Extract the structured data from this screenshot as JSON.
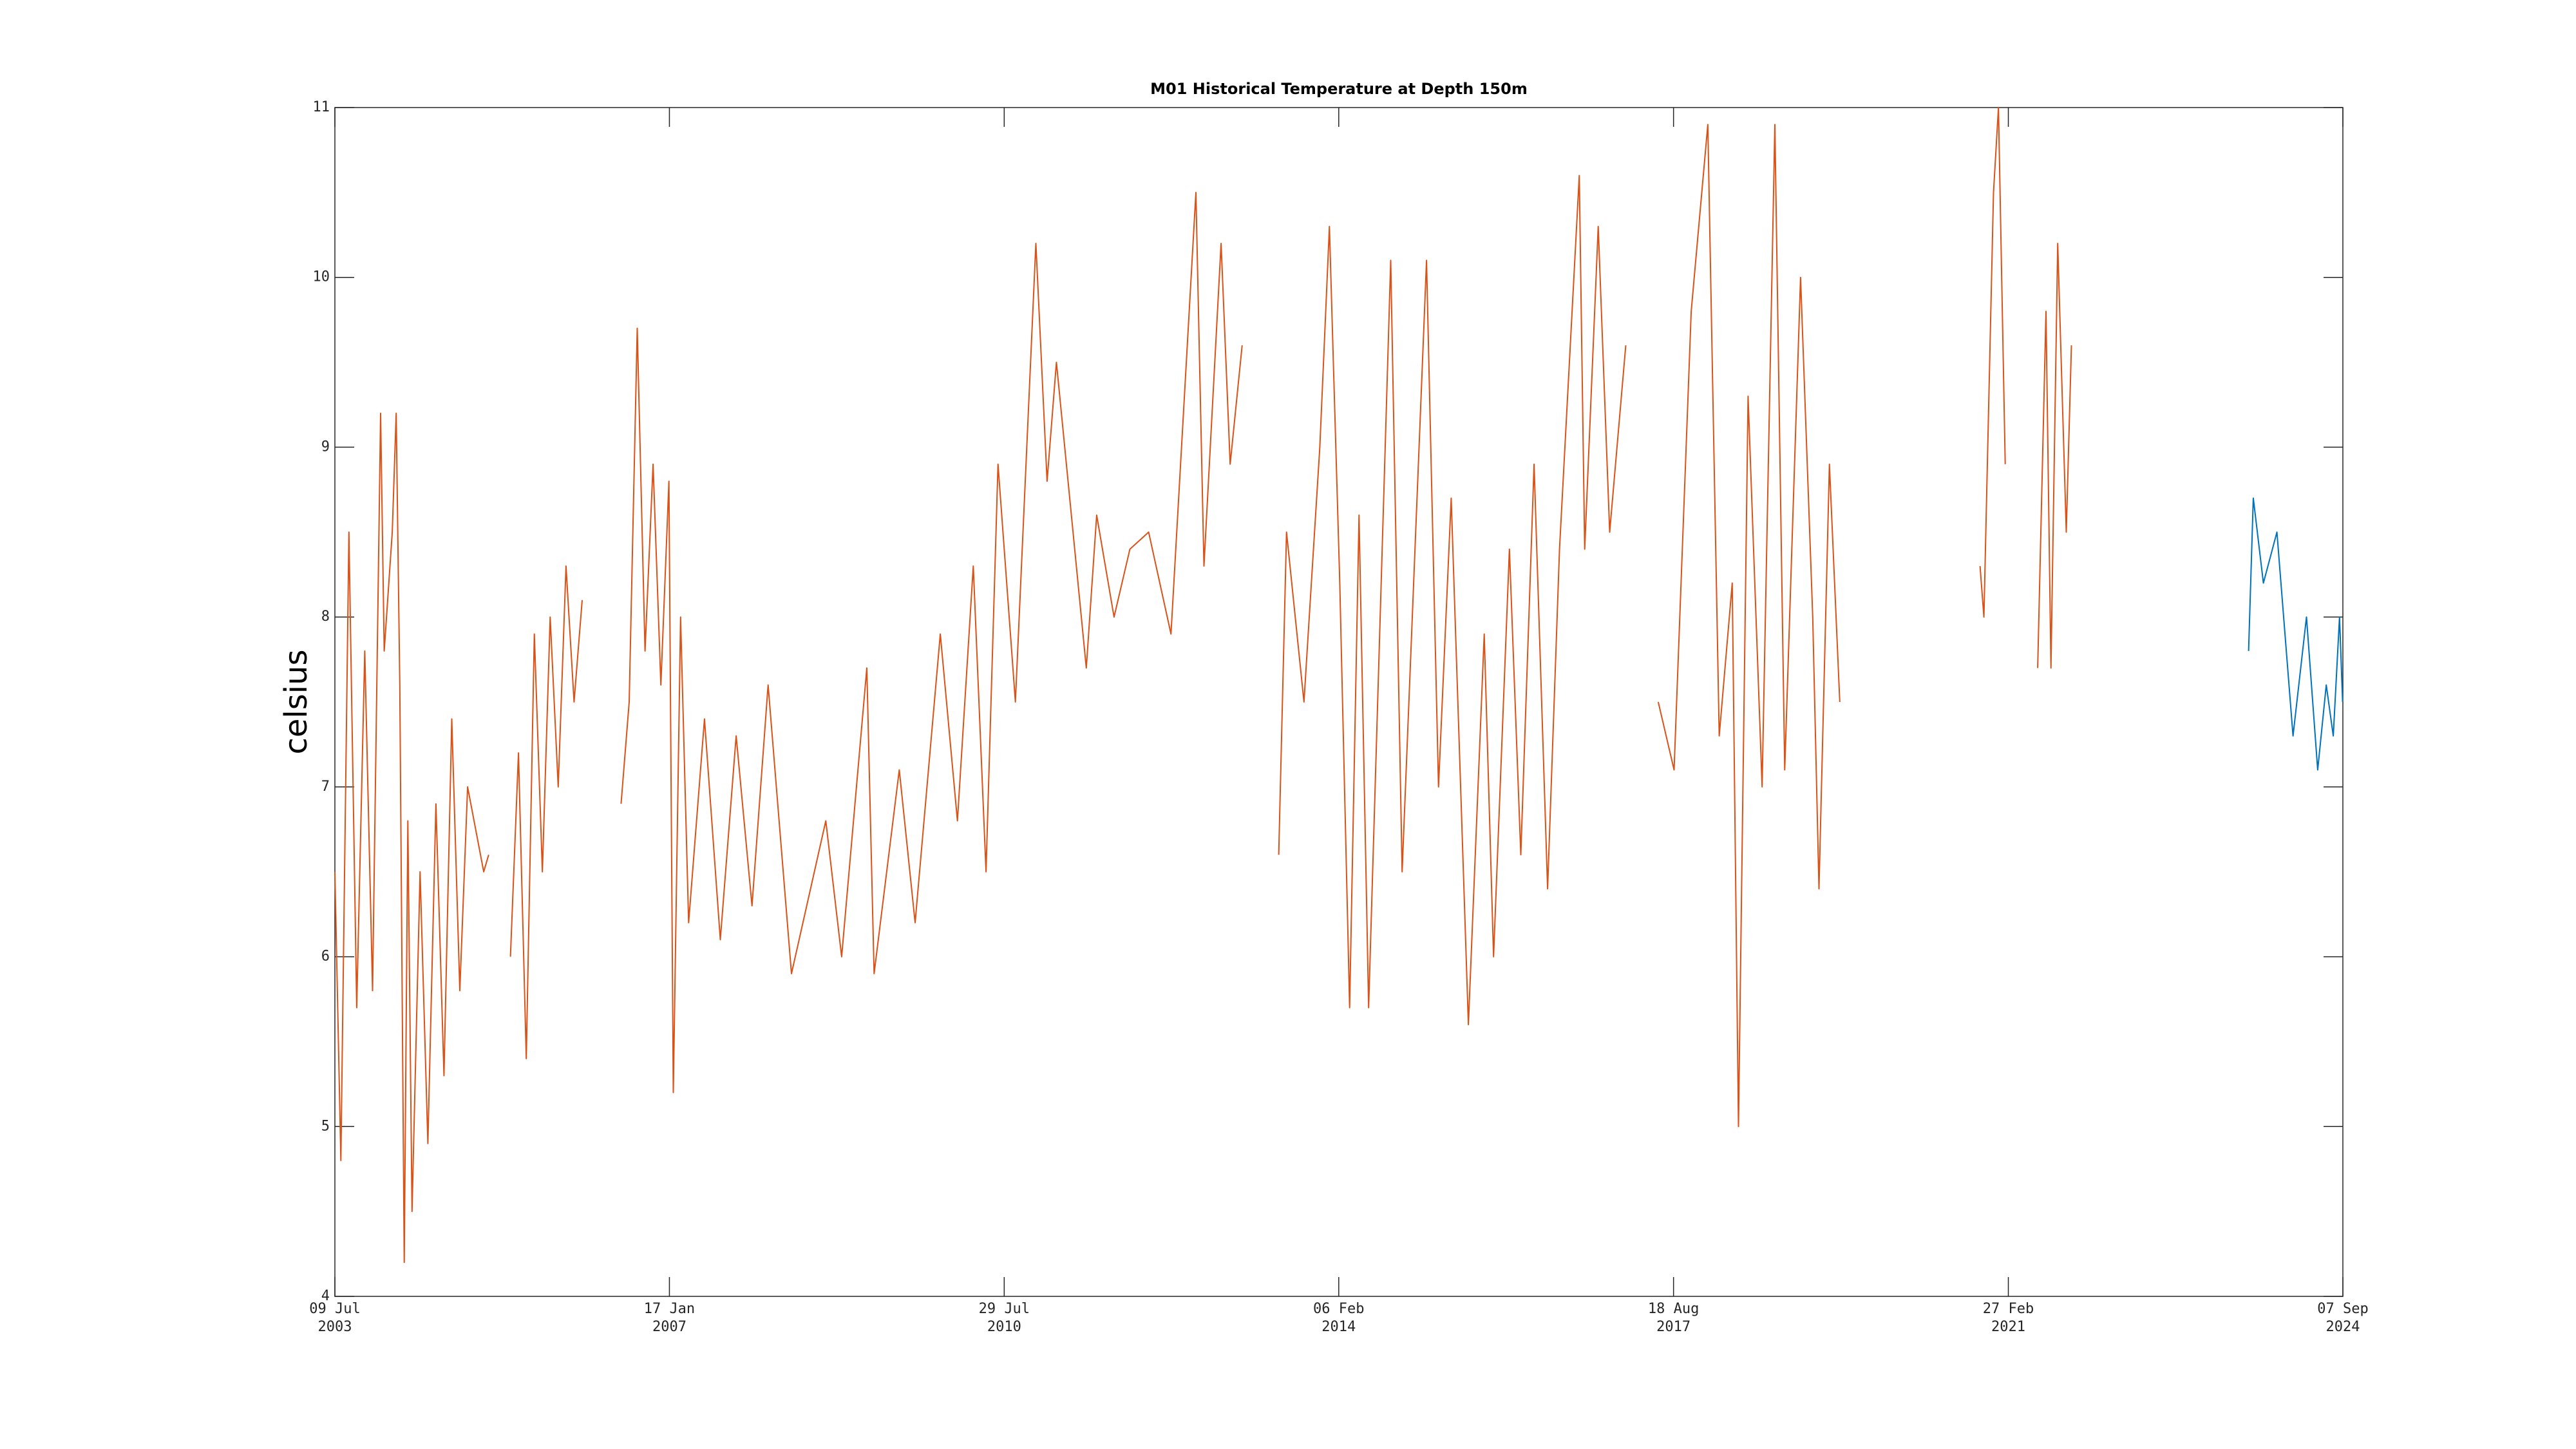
{
  "chart_data": {
    "type": "line",
    "title": "M01 Historical Temperature at Depth 150m",
    "y_label": "celsius",
    "xlim": [
      "2003-07-09",
      "2024-09-07"
    ],
    "xticks": [
      {
        "value": "2003-07-09",
        "label": "09 Jul\n2003"
      },
      {
        "value": "2007-01-17",
        "label": "17 Jan\n2007"
      },
      {
        "value": "2010-07-29",
        "label": "29 Jul\n2010"
      },
      {
        "value": "2014-02-06",
        "label": "06 Feb\n2014"
      },
      {
        "value": "2017-08-18",
        "label": "18 Aug\n2017"
      },
      {
        "value": "2021-02-27",
        "label": "27 Feb\n2021"
      },
      {
        "value": "2024-09-07",
        "label": "07 Sep\n2024"
      }
    ],
    "ylim": [
      4,
      11
    ],
    "yticks": [
      4,
      5,
      6,
      7,
      8,
      9,
      10,
      11
    ],
    "grid": false,
    "series": [
      {
        "color": "#d95319",
        "x": [
          "2003-07-09",
          "2003-08-01",
          "2003-09-01",
          "2003-10-01",
          "2003-11-01",
          "2003-12-01",
          "2004-01-01",
          "2004-01-15",
          "2004-02-15",
          "2004-03-01",
          "2004-03-15",
          "2004-04-01",
          "2004-04-15",
          "2004-05-01",
          "2004-06-01",
          "2004-07-01",
          "2004-08-01",
          "2004-09-01",
          "2004-10-01",
          "2004-11-01",
          "2004-12-01",
          "2005-02-01",
          "2005-02-20",
          "2005-04-01",
          "2005-05-15",
          "2005-06-15",
          "2005-07-15",
          "2005-08-15",
          "2005-09-15",
          "2005-10-15",
          "2005-11-15",
          "2005-12-15",
          "2006-01-15",
          "2006-02-15",
          "2006-05-01",
          "2006-07-15",
          "2006-08-15",
          "2006-09-15",
          "2006-10-15",
          "2006-11-15",
          "2006-12-15",
          "2007-01-15",
          "2007-02-01",
          "2007-03-01",
          "2007-04-01",
          "2007-06-01",
          "2007-08-01",
          "2007-10-01",
          "2007-12-01",
          "2008-02-01",
          "2008-05-01",
          "2008-09-10",
          "2008-11-10",
          "2009-02-15",
          "2009-03-15",
          "2009-06-20",
          "2009-08-20",
          "2009-11-25",
          "2010-01-30",
          "2010-04-01",
          "2010-05-20",
          "2010-07-05",
          "2010-09-10",
          "2010-11-28",
          "2011-01-10",
          "2011-02-15",
          "2011-04-20",
          "2011-06-10",
          "2011-07-20",
          "2011-09-25",
          "2011-11-25",
          "2012-02-05",
          "2012-05-01",
          "2012-08-05",
          "2012-09-05",
          "2012-11-10",
          "2012-12-15",
          "2013-01-30",
          "2013-04-15",
          "2013-06-20",
          "2013-07-20",
          "2013-09-25",
          "2013-11-25",
          "2014-01-01",
          "2014-02-10",
          "2014-03-20",
          "2014-04-25",
          "2014-06-01",
          "2014-08-25",
          "2014-10-08",
          "2015-01-10",
          "2015-02-25",
          "2015-04-15",
          "2015-06-20",
          "2015-08-20",
          "2015-09-25",
          "2015-11-25",
          "2016-01-08",
          "2016-02-28",
          "2016-04-20",
          "2016-06-05",
          "2016-08-20",
          "2016-09-10",
          "2016-11-01",
          "2016-12-15",
          "2017-02-15",
          "2017-04-15",
          "2017-06-20",
          "2017-08-20",
          "2017-10-25",
          "2017-12-28",
          "2018-02-10",
          "2018-04-01",
          "2018-04-25",
          "2018-06-01",
          "2018-07-25",
          "2018-09-12",
          "2018-10-20",
          "2018-12-20",
          "2019-02-05",
          "2019-03-01",
          "2019-04-10",
          "2019-05-20",
          "2020-02-01",
          "2020-11-10",
          "2020-11-25",
          "2021-01-01",
          "2021-01-20",
          "2021-02-15",
          "2021-04-15",
          "2021-06-20",
          "2021-07-22",
          "2021-08-10",
          "2021-09-05",
          "2021-10-08",
          "2021-10-28"
        ],
        "values": [
          6.5,
          4.8,
          8.5,
          5.7,
          7.8,
          5.8,
          9.2,
          7.8,
          8.5,
          9.2,
          7.6,
          4.2,
          6.8,
          4.5,
          6.5,
          4.9,
          6.9,
          5.3,
          7.4,
          5.8,
          7.0,
          6.5,
          6.6,
          null,
          6.0,
          7.2,
          5.4,
          7.9,
          6.5,
          8.0,
          7.0,
          8.3,
          7.5,
          8.1,
          null,
          6.9,
          7.5,
          9.7,
          7.8,
          8.9,
          7.6,
          8.8,
          5.2,
          8.0,
          6.2,
          7.4,
          6.1,
          7.3,
          6.3,
          7.6,
          5.9,
          6.8,
          6.0,
          7.7,
          5.9,
          7.1,
          6.2,
          7.9,
          6.8,
          8.3,
          6.5,
          8.9,
          7.5,
          10.2,
          8.8,
          9.5,
          8.5,
          7.7,
          8.6,
          8.0,
          8.4,
          8.5,
          7.9,
          10.5,
          8.3,
          10.2,
          8.9,
          9.6,
          null,
          6.6,
          8.5,
          7.5,
          9.0,
          10.3,
          8.2,
          5.7,
          8.6,
          5.7,
          10.1,
          6.5,
          10.1,
          7.0,
          8.7,
          5.6,
          7.9,
          6.0,
          8.4,
          6.6,
          8.9,
          6.4,
          8.4,
          10.6,
          8.4,
          10.3,
          8.5,
          9.6,
          null,
          7.5,
          7.1,
          9.8,
          10.9,
          7.3,
          8.2,
          5.0,
          9.3,
          7.0,
          10.9,
          7.1,
          10.0,
          8.0,
          6.4,
          8.9,
          7.5,
          null,
          8.3,
          8.0,
          10.5,
          11.0,
          8.9,
          null,
          7.7,
          9.8,
          7.7,
          10.2,
          8.5,
          9.6
        ]
      },
      {
        "color": "#0072bd",
        "x": [
          "2023-09-10",
          "2023-09-28",
          "2023-11-06",
          "2023-12-28",
          "2024-02-28",
          "2024-04-20",
          "2024-06-02",
          "2024-07-05",
          "2024-08-01",
          "2024-08-25",
          "2024-09-06"
        ],
        "values": [
          7.8,
          8.7,
          8.2,
          8.5,
          7.3,
          8.0,
          7.1,
          7.6,
          7.3,
          8.0,
          7.5
        ]
      }
    ]
  }
}
